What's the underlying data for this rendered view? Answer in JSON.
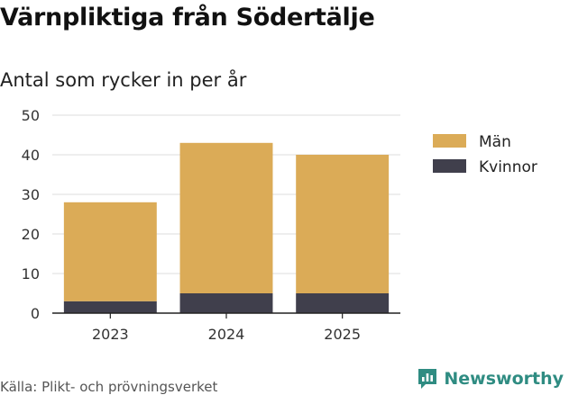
{
  "title": "Värnpliktiga från Södertälje",
  "subtitle": "Antal som rycker in per år",
  "source": "Källa: Plikt- och prövningsverket",
  "brand": "Newsworthy",
  "icons": {
    "brand_logo": "newsworthy-logo-icon"
  },
  "colors": {
    "man": "#dbab57",
    "kvinnor": "#403f4c",
    "brand": "#2f8c82",
    "grid": "#dddddd",
    "axis": "#222222"
  },
  "chart_data": {
    "type": "bar",
    "stacked": true,
    "categories": [
      "2023",
      "2024",
      "2025"
    ],
    "series": [
      {
        "name": "Kvinnor",
        "values": [
          3,
          5,
          5
        ],
        "color": "#403f4c"
      },
      {
        "name": "Män",
        "values": [
          25,
          38,
          35
        ],
        "color": "#dbab57"
      }
    ],
    "legend": [
      {
        "name": "Män",
        "color": "#dbab57"
      },
      {
        "name": "Kvinnor",
        "color": "#403f4c"
      }
    ],
    "legend_position": "right",
    "yticks": [
      0,
      10,
      20,
      30,
      40,
      50
    ],
    "ylim": [
      0,
      50
    ],
    "grid": true,
    "xlabel": "",
    "ylabel": ""
  }
}
